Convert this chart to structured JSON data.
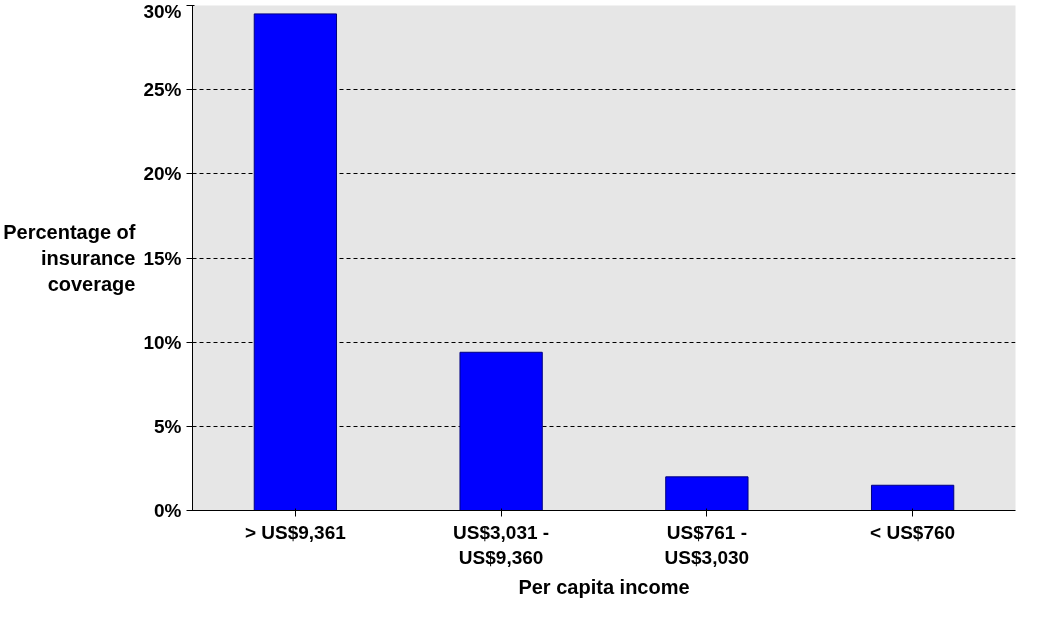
{
  "chart_data": {
    "type": "bar",
    "xlabel": "Per capita income",
    "ylabel": "Percentage of\ninsurance\ncoverage",
    "categories": [
      "> US$9,361",
      "US$3,031 -\nUS$9,360",
      "US$761 -\nUS$3,030",
      "< US$760"
    ],
    "series": [
      {
        "color": "#0000ff",
        "values": [
          29.5,
          9.4,
          2.0,
          1.5
        ]
      }
    ],
    "ylim": [
      0,
      30
    ],
    "yticks": [
      {
        "value": 0,
        "label": "0%"
      },
      {
        "value": 5,
        "label": "5%"
      },
      {
        "value": 10,
        "label": "10%"
      },
      {
        "value": 15,
        "label": "15%"
      },
      {
        "value": 20,
        "label": "20%"
      },
      {
        "value": 25,
        "label": "25%"
      },
      {
        "value": 30,
        "label": "30%"
      }
    ],
    "grid": "y"
  }
}
